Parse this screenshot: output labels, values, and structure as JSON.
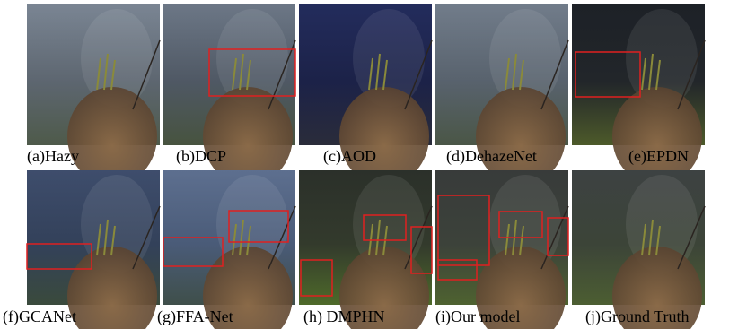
{
  "captions": {
    "row1": [
      "(a)Hazy",
      "(b)DCP",
      "(c)AOD",
      "(d)DehazeNet",
      "(e)EPDN"
    ],
    "row2": [
      "(f)GCANet",
      "(g)FFA-Net",
      "(h) DMPHN",
      "(i)Our model",
      "(j)Ground Truth"
    ]
  }
}
